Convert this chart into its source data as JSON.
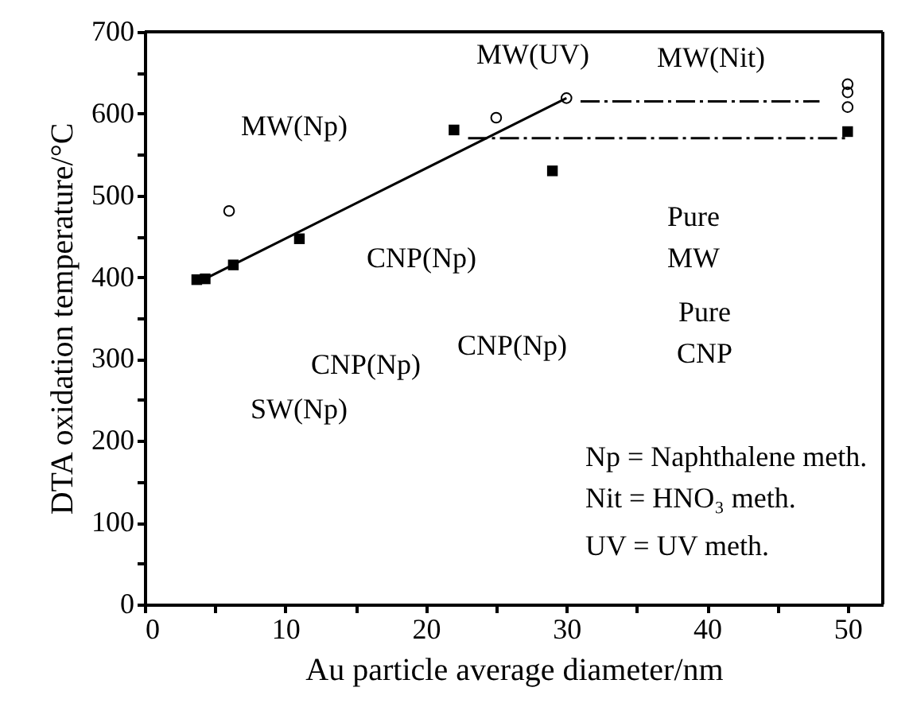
{
  "chart_data": {
    "type": "scatter",
    "xlabel": "Au particle average diameter/nm",
    "ylabel": "DTA oxidation temperature/°C",
    "xlim": [
      0,
      52.5
    ],
    "ylim": [
      0,
      700
    ],
    "xticks": [
      0,
      {
        "value": 5,
        "label": null
      },
      10,
      {
        "value": 15,
        "label": null
      },
      20,
      {
        "value": 25,
        "label": null
      },
      30,
      {
        "value": 35,
        "label": null
      },
      40,
      {
        "value": 45,
        "label": null
      },
      50
    ],
    "yticks": [
      0,
      {
        "value": 50,
        "label": null
      },
      100,
      {
        "value": 150,
        "label": null
      },
      200,
      {
        "value": 250,
        "label": null
      },
      300,
      {
        "value": 350,
        "label": null
      },
      400,
      {
        "value": 450,
        "label": null
      },
      500,
      {
        "value": 550,
        "label": null
      },
      600,
      {
        "value": 650,
        "label": null
      },
      700
    ],
    "grid": false,
    "series": [
      {
        "marker": "square",
        "color": "#000000",
        "x": [
          3.7,
          4.3,
          6.3,
          11,
          22,
          29,
          50
        ],
        "values": [
          397,
          398,
          415,
          447,
          580,
          530,
          578
        ]
      },
      {
        "marker": "circle",
        "color": "#000000",
        "x": [
          6,
          25,
          30,
          50,
          50,
          50
        ],
        "values": [
          481,
          595,
          619,
          636,
          626,
          608
        ]
      },
      {
        "type": "line",
        "line_style": "solid",
        "color": "#000000",
        "x": [
          3.7,
          30
        ],
        "values": [
          393,
          619
        ]
      },
      {
        "type": "line",
        "line_style": "dashed",
        "color": "#000000",
        "x": [
          31,
          48
        ],
        "values": [
          615,
          615
        ]
      },
      {
        "type": "line",
        "line_style": "dashed",
        "color": "#000000",
        "x": [
          23,
          50
        ],
        "values": [
          570,
          570
        ]
      }
    ],
    "annotations": [
      "MW(Np)",
      "MW(UV)",
      "MW(Nit)",
      "CNP(Np)",
      "CNP(Np)",
      "SW(Np)",
      "CNP(Np)",
      "Pure\nMW",
      "Pure\nCNP",
      "Np = Naphthalene meth.",
      "Nit = HNO₃ meth.",
      "UV = UV meth."
    ]
  }
}
